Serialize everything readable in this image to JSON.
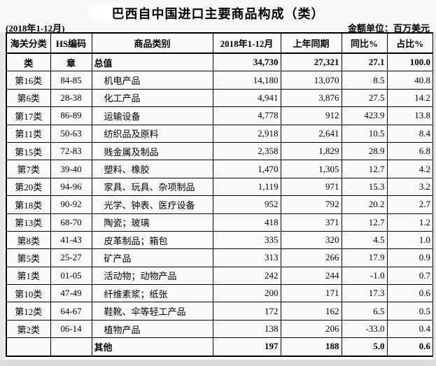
{
  "page": {
    "title": "巴西自中国进口主要商品构成（类）",
    "period": "(2018年1-12月)",
    "unit_note": "金额单位：百万美元"
  },
  "colors": {
    "text": "#000000",
    "border": "#000000",
    "paper": "#f7f7f7"
  },
  "table": {
    "headers": [
      "海关分类",
      "HS编码",
      "商品类别",
      "2018年1-12月",
      "上年同期",
      "同比%",
      "占比%"
    ],
    "rows": [
      {
        "category": "类",
        "hs": "章",
        "name": "总值",
        "current": "34,730",
        "previous": "27,321",
        "yoy": "27.1",
        "share": "100.0",
        "bold": true
      },
      {
        "category": "第16类",
        "hs": "84-85",
        "name": "机电产品",
        "current": "14,180",
        "previous": "13,070",
        "yoy": "8.5",
        "share": "40.8",
        "bold": false
      },
      {
        "category": "第6类",
        "hs": "28-38",
        "name": "化工产品",
        "current": "4,941",
        "previous": "3,876",
        "yoy": "27.5",
        "share": "14.2",
        "bold": false
      },
      {
        "category": "第17类",
        "hs": "86-89",
        "name": "运输设备",
        "current": "4,778",
        "previous": "912",
        "yoy": "423.9",
        "share": "13.8",
        "bold": false
      },
      {
        "category": "第11类",
        "hs": "50-63",
        "name": "纺织品及原料",
        "current": "2,918",
        "previous": "2,641",
        "yoy": "10.5",
        "share": "8.4",
        "bold": false
      },
      {
        "category": "第15类",
        "hs": "72-83",
        "name": "贱金属及制品",
        "current": "2,358",
        "previous": "1,829",
        "yoy": "28.9",
        "share": "6.8",
        "bold": false
      },
      {
        "category": "第7类",
        "hs": "39-40",
        "name": "塑料、橡胶",
        "current": "1,470",
        "previous": "1,305",
        "yoy": "12.7",
        "share": "4.2",
        "bold": false
      },
      {
        "category": "第20类",
        "hs": "94-96",
        "name": "家具、玩具、杂项制品",
        "current": "1,119",
        "previous": "971",
        "yoy": "15.3",
        "share": "3.2",
        "bold": false
      },
      {
        "category": "第18类",
        "hs": "90-92",
        "name": "光学、钟表、医疗设备",
        "current": "952",
        "previous": "792",
        "yoy": "20.2",
        "share": "2.7",
        "bold": false
      },
      {
        "category": "第13类",
        "hs": "68-70",
        "name": "陶瓷；玻璃",
        "current": "418",
        "previous": "371",
        "yoy": "12.7",
        "share": "1.2",
        "bold": false
      },
      {
        "category": "第8类",
        "hs": "41-43",
        "name": "皮革制品；箱包",
        "current": "335",
        "previous": "320",
        "yoy": "4.5",
        "share": "1.0",
        "bold": false
      },
      {
        "category": "第5类",
        "hs": "25-27",
        "name": "矿产品",
        "current": "313",
        "previous": "266",
        "yoy": "17.9",
        "share": "0.9",
        "bold": false
      },
      {
        "category": "第1类",
        "hs": "01-05",
        "name": "活动物；动物产品",
        "current": "242",
        "previous": "244",
        "yoy": "-1.0",
        "share": "0.7",
        "bold": false
      },
      {
        "category": "第10类",
        "hs": "47-49",
        "name": "纤维素浆；纸张",
        "current": "200",
        "previous": "171",
        "yoy": "17.3",
        "share": "0.6",
        "bold": false
      },
      {
        "category": "第12类",
        "hs": "64-67",
        "name": "鞋靴、伞等轻工产品",
        "current": "172",
        "previous": "162",
        "yoy": "6.5",
        "share": "0.5",
        "bold": false
      },
      {
        "category": "第2类",
        "hs": "06-14",
        "name": "植物产品",
        "current": "138",
        "previous": "206",
        "yoy": "-33.0",
        "share": "0.4",
        "bold": false
      },
      {
        "category": "",
        "hs": "",
        "name": "其他",
        "current": "197",
        "previous": "188",
        "yoy": "5.0",
        "share": "0.6",
        "bold": true
      }
    ]
  }
}
